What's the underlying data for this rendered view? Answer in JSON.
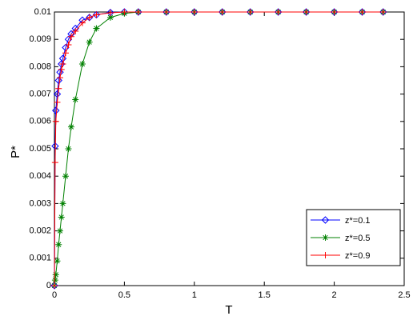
{
  "chart_data": {
    "type": "line",
    "xlabel": "T",
    "ylabel": "P*",
    "x": [
      0,
      0.005,
      0.01,
      0.02,
      0.03,
      0.04,
      0.05,
      0.06,
      0.08,
      0.1,
      0.12,
      0.15,
      0.2,
      0.25,
      0.3,
      0.4,
      0.5,
      0.6,
      0.8,
      1,
      1.2,
      1.4,
      1.6,
      1.8,
      2,
      2.2,
      2.35
    ],
    "series": [
      {
        "name": "z*=0.1",
        "color": "#0000ff",
        "marker": "diamond",
        "values": [
          0,
          0.0051,
          0.0064,
          0.007,
          0.0075,
          0.0078,
          0.0081,
          0.0083,
          0.0087,
          0.009,
          0.0092,
          0.0094,
          0.0097,
          0.0098,
          0.0099,
          0.00998,
          0.01,
          0.01,
          0.01,
          0.01,
          0.01,
          0.01,
          0.01,
          0.01,
          0.01,
          0.01,
          0.01
        ]
      },
      {
        "name": "z*=0.5",
        "color": "#008000",
        "marker": "asterisk",
        "values": [
          0,
          0.0002,
          0.0004,
          0.0009,
          0.0015,
          0.002,
          0.0025,
          0.003,
          0.004,
          0.005,
          0.0058,
          0.0068,
          0.0081,
          0.0089,
          0.0094,
          0.0098,
          0.00995,
          0.01,
          0.01,
          0.01,
          0.01,
          0.01,
          0.01,
          0.01,
          0.01,
          0.01,
          0.01
        ]
      },
      {
        "name": "z*=0.9",
        "color": "#ff0000",
        "marker": "plus",
        "values": [
          0,
          0.0045,
          0.006,
          0.0067,
          0.0072,
          0.0076,
          0.0079,
          0.0081,
          0.0085,
          0.0088,
          0.0091,
          0.0093,
          0.0096,
          0.0098,
          0.0099,
          0.00997,
          0.01,
          0.01,
          0.01,
          0.01,
          0.01,
          0.01,
          0.01,
          0.01,
          0.01,
          0.01,
          0.01
        ]
      }
    ],
    "xlim": [
      0,
      2.5
    ],
    "xticks": [
      0,
      0.5,
      1,
      1.5,
      2,
      2.5
    ],
    "ylim": [
      0,
      0.01
    ],
    "yticks": [
      0,
      0.001,
      0.002,
      0.003,
      0.004,
      0.005,
      0.006,
      0.007,
      0.008,
      0.009,
      0.01
    ],
    "legend": "lower right"
  }
}
